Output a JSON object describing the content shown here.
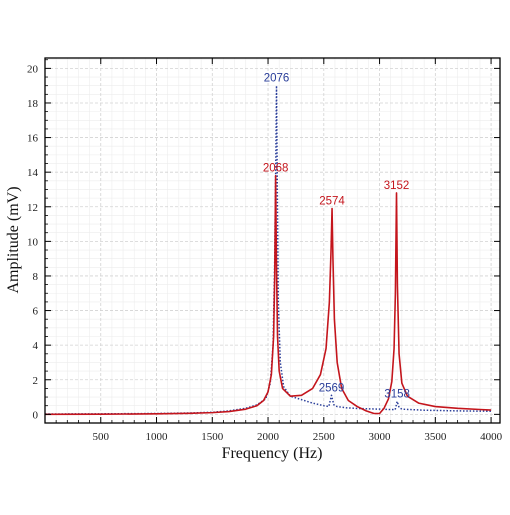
{
  "chart_data": {
    "type": "line",
    "xlabel": "Frequency (Hz)",
    "ylabel": "Amplitude (mV)",
    "xlim": [
      0,
      4080
    ],
    "ylim": [
      -0.5,
      20.6
    ],
    "x_ticks": [
      500,
      1000,
      1500,
      2000,
      2500,
      3000,
      3500,
      4000
    ],
    "y_ticks": [
      0,
      2,
      4,
      6,
      8,
      10,
      12,
      14,
      16,
      18,
      20
    ],
    "grid": true,
    "minor_grid": true,
    "series": [
      {
        "line_style": "dotted",
        "color": "#2a3e9a",
        "points": [
          [
            0,
            0.02
          ],
          [
            500,
            0.03
          ],
          [
            1000,
            0.05
          ],
          [
            1300,
            0.08
          ],
          [
            1500,
            0.12
          ],
          [
            1650,
            0.2
          ],
          [
            1800,
            0.35
          ],
          [
            1900,
            0.55
          ],
          [
            1980,
            0.9
          ],
          [
            2020,
            1.8
          ],
          [
            2045,
            4.0
          ],
          [
            2060,
            9.0
          ],
          [
            2070,
            15.0
          ],
          [
            2076,
            19.0
          ],
          [
            2082,
            14.0
          ],
          [
            2092,
            6.5
          ],
          [
            2110,
            3.0
          ],
          [
            2140,
            1.6
          ],
          [
            2200,
            1.05
          ],
          [
            2300,
            0.85
          ],
          [
            2400,
            0.65
          ],
          [
            2500,
            0.5
          ],
          [
            2545,
            0.45
          ],
          [
            2569,
            1.1
          ],
          [
            2590,
            0.55
          ],
          [
            2620,
            0.45
          ],
          [
            2700,
            0.38
          ],
          [
            2800,
            0.34
          ],
          [
            2900,
            0.32
          ],
          [
            3000,
            0.3
          ],
          [
            3100,
            0.28
          ],
          [
            3140,
            0.27
          ],
          [
            3158,
            0.75
          ],
          [
            3175,
            0.4
          ],
          [
            3200,
            0.3
          ],
          [
            3400,
            0.24
          ],
          [
            3700,
            0.2
          ],
          [
            4000,
            0.18
          ]
        ],
        "peaks": [
          {
            "x": 2076,
            "y": 19.0,
            "label": "2076"
          },
          {
            "x": 2569,
            "y": 1.1,
            "label": "2569"
          },
          {
            "x": 3158,
            "y": 0.75,
            "label": "3158"
          }
        ]
      },
      {
        "line_style": "solid",
        "color": "#c4151c",
        "points": [
          [
            0,
            0.0
          ],
          [
            500,
            0.01
          ],
          [
            1000,
            0.03
          ],
          [
            1300,
            0.06
          ],
          [
            1500,
            0.1
          ],
          [
            1650,
            0.16
          ],
          [
            1800,
            0.3
          ],
          [
            1900,
            0.5
          ],
          [
            1960,
            0.8
          ],
          [
            2000,
            1.3
          ],
          [
            2030,
            2.3
          ],
          [
            2050,
            4.5
          ],
          [
            2060,
            8.0
          ],
          [
            2068,
            13.8
          ],
          [
            2075,
            9.0
          ],
          [
            2085,
            4.5
          ],
          [
            2100,
            2.5
          ],
          [
            2130,
            1.5
          ],
          [
            2200,
            1.05
          ],
          [
            2300,
            1.1
          ],
          [
            2400,
            1.5
          ],
          [
            2470,
            2.3
          ],
          [
            2520,
            3.8
          ],
          [
            2550,
            6.5
          ],
          [
            2565,
            9.5
          ],
          [
            2574,
            11.9
          ],
          [
            2582,
            9.0
          ],
          [
            2595,
            5.5
          ],
          [
            2620,
            3.0
          ],
          [
            2660,
            1.5
          ],
          [
            2720,
            0.8
          ],
          [
            2800,
            0.45
          ],
          [
            2880,
            0.2
          ],
          [
            2950,
            0.05
          ],
          [
            3000,
            0.05
          ],
          [
            3040,
            0.35
          ],
          [
            3080,
            0.9
          ],
          [
            3110,
            1.9
          ],
          [
            3130,
            3.8
          ],
          [
            3142,
            7.0
          ],
          [
            3152,
            12.8
          ],
          [
            3160,
            7.5
          ],
          [
            3175,
            3.5
          ],
          [
            3200,
            1.8
          ],
          [
            3250,
            1.05
          ],
          [
            3350,
            0.65
          ],
          [
            3500,
            0.45
          ],
          [
            3700,
            0.35
          ],
          [
            3900,
            0.28
          ],
          [
            4000,
            0.25
          ]
        ],
        "peaks": [
          {
            "x": 2068,
            "y": 13.8,
            "label": "2068"
          },
          {
            "x": 2574,
            "y": 11.9,
            "label": "2574"
          },
          {
            "x": 3152,
            "y": 12.8,
            "label": "3152"
          }
        ]
      }
    ]
  }
}
